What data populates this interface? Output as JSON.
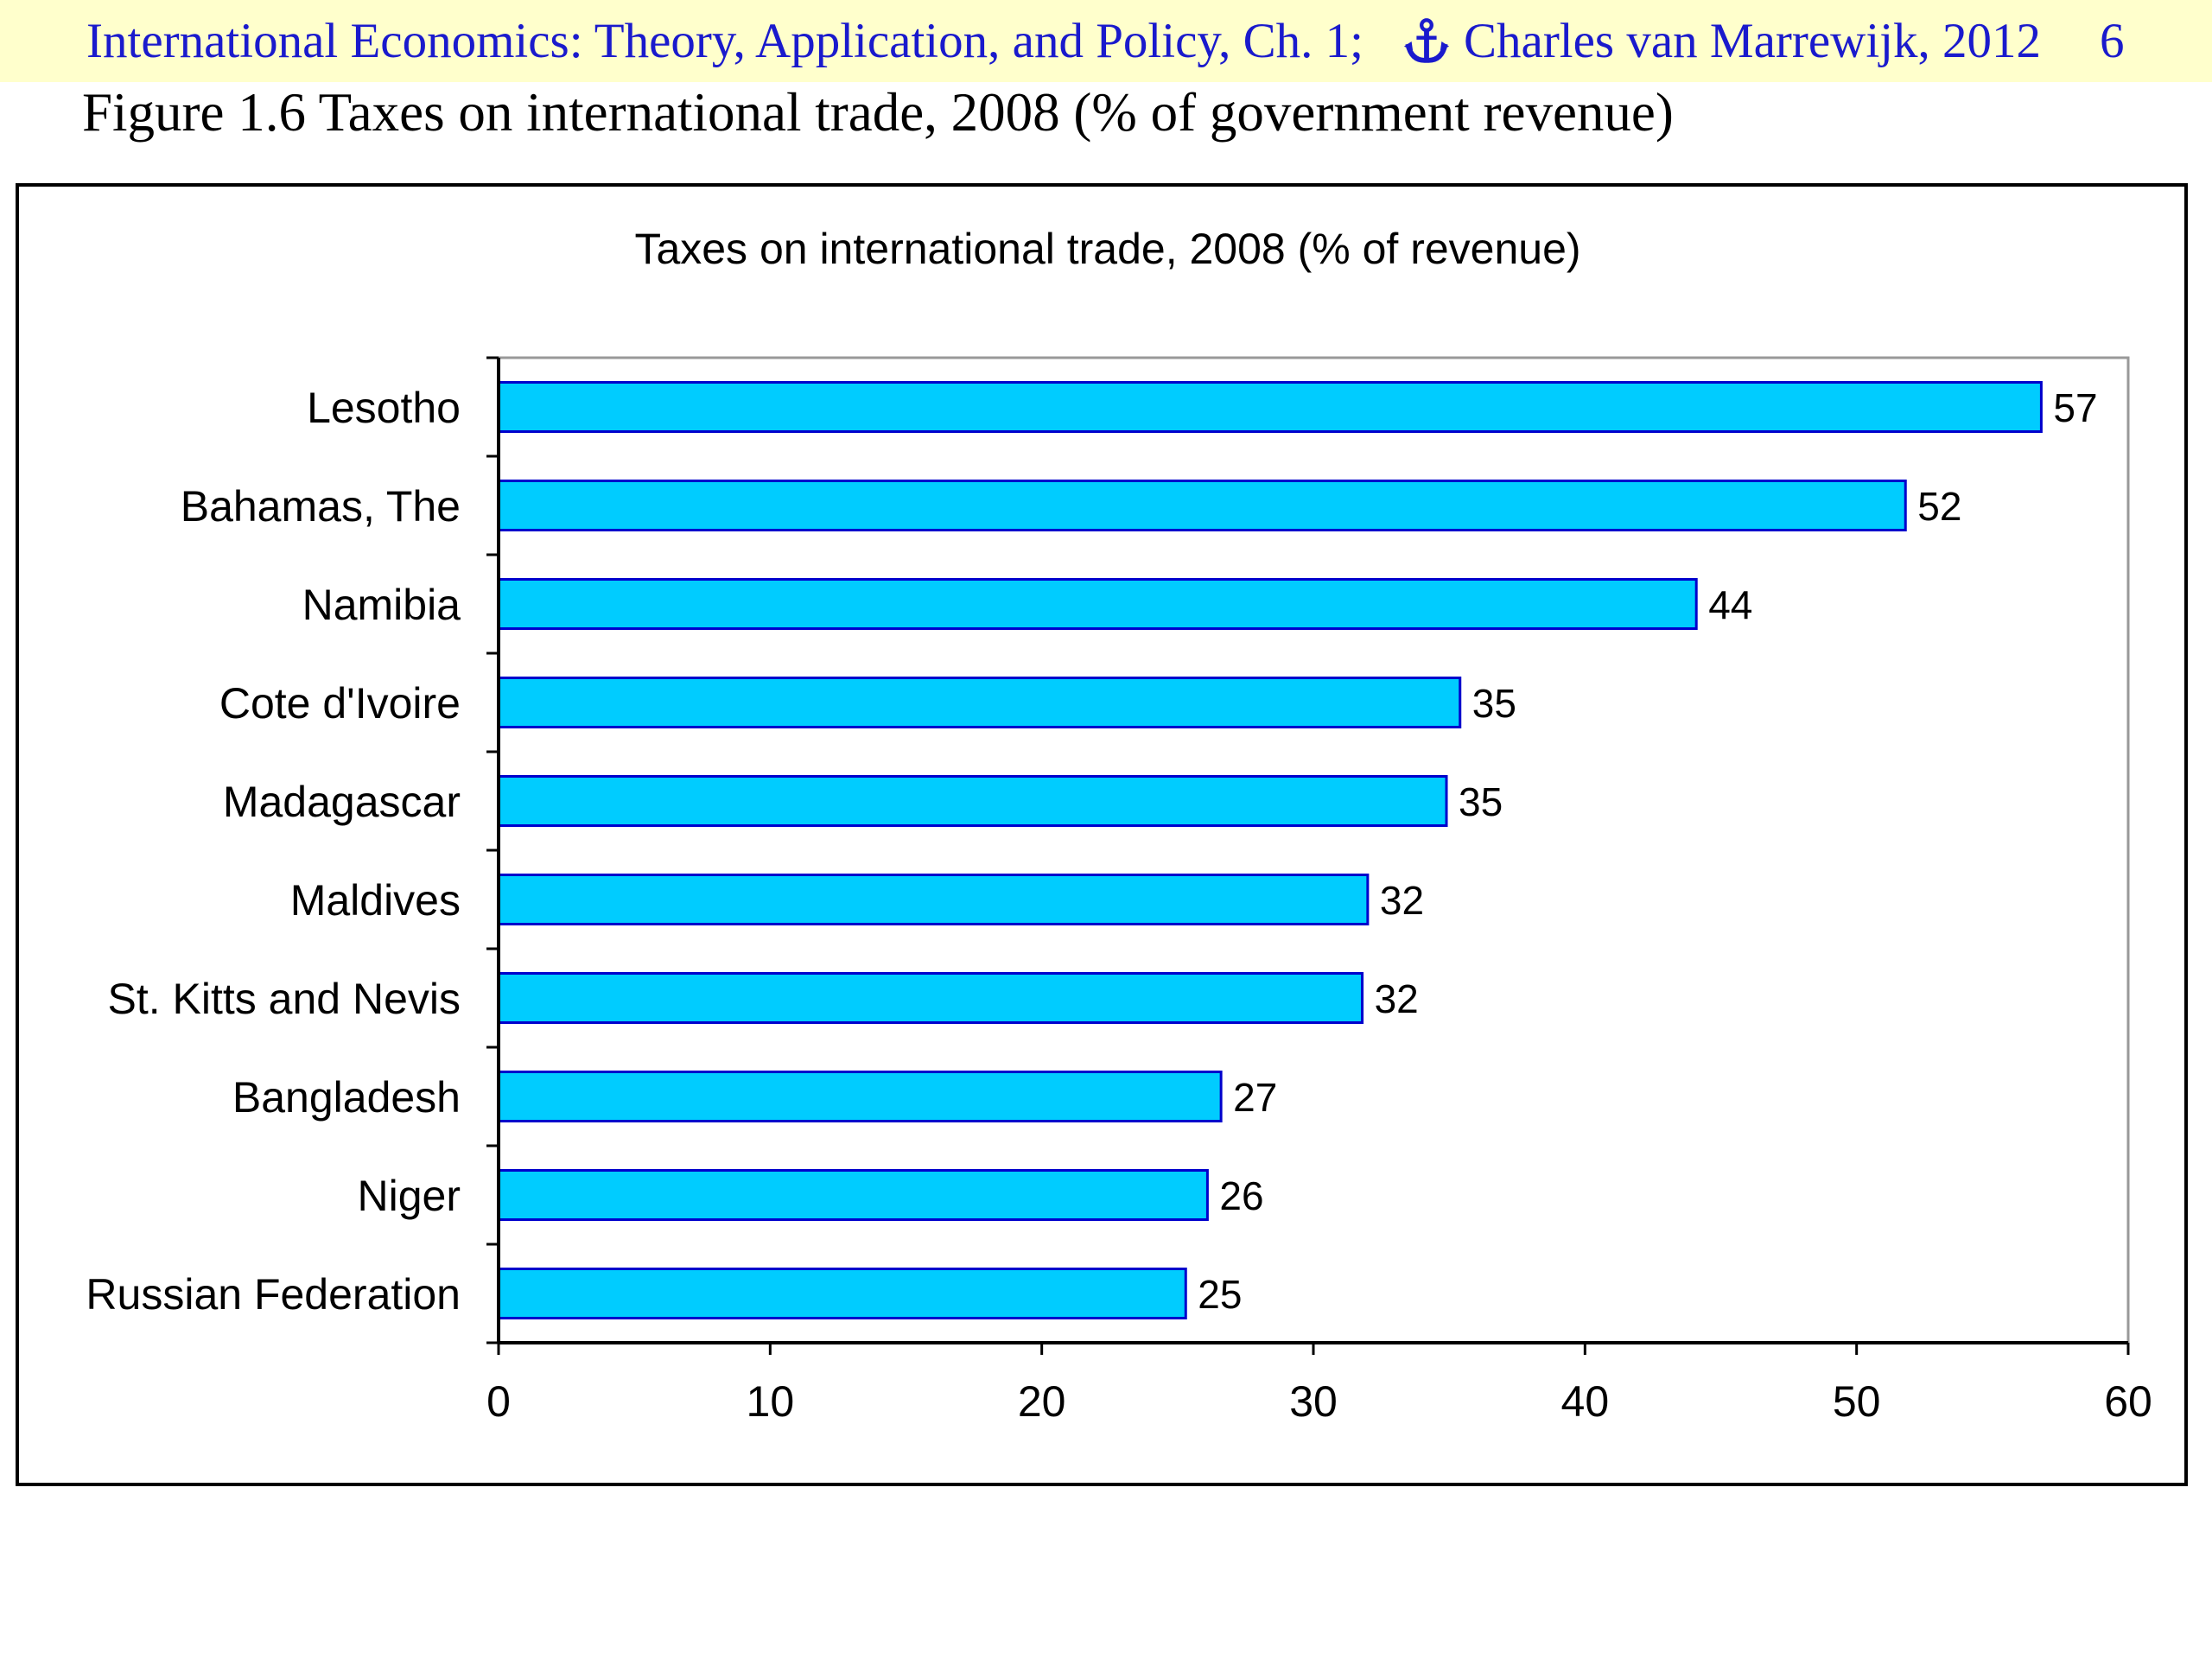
{
  "header": {
    "left_text": "International Economics: Theory, Application, and Policy, Ch. 1;",
    "author_text": "Charles van Marrewijk, 2012",
    "page_number": "6",
    "anchor_icon": "anchor-icon"
  },
  "figure": {
    "caption": "Figure 1.6 Taxes on international trade, 2008 (% of government revenue)"
  },
  "colors": {
    "header_bg": "#ffffcc",
    "header_text": "#1a1acc",
    "bar_fill": "#00ccff",
    "bar_stroke": "#0000cc"
  },
  "chart_data": {
    "type": "bar",
    "orientation": "horizontal",
    "title": "Taxes on international trade, 2008 (% of revenue)",
    "xlabel": "",
    "ylabel": "",
    "categories": [
      "Lesotho",
      "Bahamas, The",
      "Namibia",
      "Cote d'Ivoire",
      "Madagascar",
      "Maldives",
      "St. Kitts and Nevis",
      "Bangladesh",
      "Niger",
      "Russian Federation"
    ],
    "values": [
      56.8,
      51.8,
      44.1,
      35.4,
      34.9,
      32.0,
      31.8,
      26.6,
      26.1,
      25.3
    ],
    "data_labels": [
      "57",
      "52",
      "44",
      "35",
      "35",
      "32",
      "32",
      "27",
      "26",
      "25"
    ],
    "xlim": [
      0,
      60
    ],
    "xticks": [
      0,
      10,
      20,
      30,
      40,
      50,
      60
    ],
    "grid": false,
    "legend": "none"
  }
}
